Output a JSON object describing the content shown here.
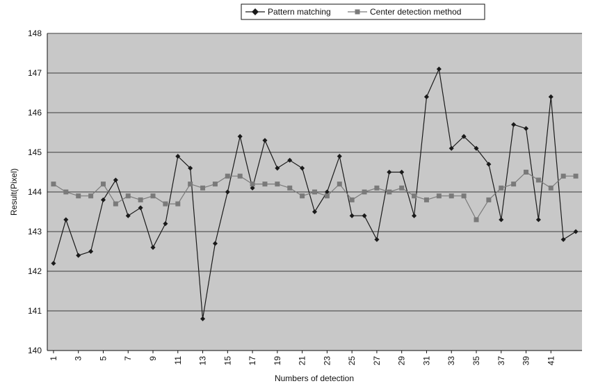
{
  "chart_data": {
    "type": "line",
    "title": "",
    "xlabel": "Numbers of detection",
    "ylabel": "Result(Pixel)",
    "ylim": [
      140,
      148
    ],
    "yticks": [
      140,
      141,
      142,
      143,
      144,
      145,
      146,
      147,
      148
    ],
    "x": [
      1,
      2,
      3,
      4,
      5,
      6,
      7,
      8,
      9,
      10,
      11,
      12,
      13,
      14,
      15,
      16,
      17,
      18,
      19,
      20,
      21,
      22,
      23,
      24,
      25,
      26,
      27,
      28,
      29,
      30,
      31,
      32,
      33,
      34,
      35,
      36,
      37,
      38,
      39,
      40,
      41,
      42,
      43
    ],
    "xtick_labels": [
      {
        "x": 1,
        "label": "1"
      },
      {
        "x": 3,
        "label": "3"
      },
      {
        "x": 5,
        "label": "5"
      },
      {
        "x": 7,
        "label": "7"
      },
      {
        "x": 9,
        "label": "9"
      },
      {
        "x": 11,
        "label": "11"
      },
      {
        "x": 13,
        "label": "13"
      },
      {
        "x": 15,
        "label": "15"
      },
      {
        "x": 17,
        "label": "17"
      },
      {
        "x": 19,
        "label": "19"
      },
      {
        "x": 21,
        "label": "21"
      },
      {
        "x": 23,
        "label": "23"
      },
      {
        "x": 25,
        "label": "25"
      },
      {
        "x": 27,
        "label": "27"
      },
      {
        "x": 29,
        "label": "29"
      },
      {
        "x": 31,
        "label": "31"
      },
      {
        "x": 33,
        "label": "33"
      },
      {
        "x": 35,
        "label": "35"
      },
      {
        "x": 37,
        "label": "37"
      },
      {
        "x": 39,
        "label": "39"
      },
      {
        "x": 41,
        "label": "41"
      }
    ],
    "grid": true,
    "legend_position": "top-right",
    "background_color": "#c8c8c8",
    "series": [
      {
        "name": "Pattern matching",
        "marker": "diamond",
        "color": "#1a1a1a",
        "values": [
          142.2,
          143.3,
          142.4,
          142.5,
          143.8,
          144.3,
          143.4,
          143.6,
          142.6,
          143.2,
          144.9,
          144.6,
          140.8,
          142.7,
          144.0,
          145.4,
          144.1,
          145.3,
          144.6,
          144.8,
          144.6,
          143.5,
          144.0,
          144.9,
          143.4,
          143.4,
          142.8,
          144.5,
          144.5,
          143.4,
          146.4,
          147.1,
          145.1,
          145.4,
          145.1,
          144.7,
          143.3,
          145.7,
          145.6,
          143.3,
          146.4,
          142.8,
          143.0
        ]
      },
      {
        "name": "Center detection method",
        "marker": "square",
        "color": "#7a7a7a",
        "values": [
          144.2,
          144.0,
          143.9,
          143.9,
          144.2,
          143.7,
          143.9,
          143.8,
          143.9,
          143.7,
          143.7,
          144.2,
          144.1,
          144.2,
          144.4,
          144.4,
          144.2,
          144.2,
          144.2,
          144.1,
          143.9,
          144.0,
          143.9,
          144.2,
          143.8,
          144.0,
          144.1,
          144.0,
          144.1,
          143.9,
          143.8,
          143.9,
          143.9,
          143.9,
          143.3,
          143.8,
          144.1,
          144.2,
          144.5,
          144.3,
          144.1,
          144.4,
          144.4
        ]
      }
    ]
  }
}
